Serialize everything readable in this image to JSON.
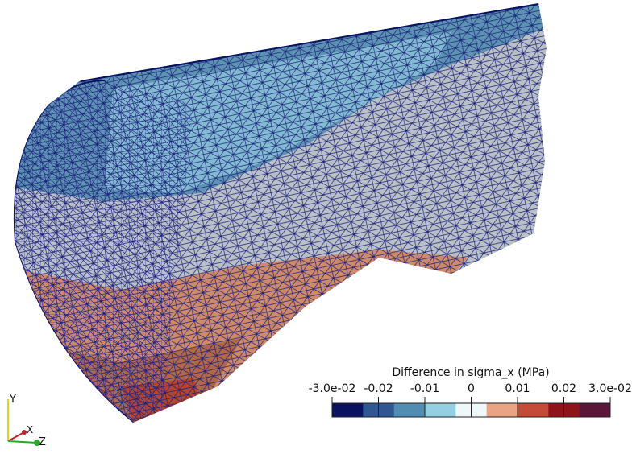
{
  "colorbar": {
    "title": "Difference in sigma_x (MPa)",
    "range": [
      -0.03,
      0.03
    ],
    "ticks": [
      {
        "value": -0.03,
        "label": "-3.0e-02"
      },
      -0.02,
      -0.01,
      0,
      0.01,
      0.02,
      {
        "value": 0.03,
        "label": "3.0e-02"
      }
    ],
    "colors": [
      "#0c1262",
      "#2f5794",
      "#4f8db2",
      "#93d1e2",
      "#eef7fa",
      "#eaa383",
      "#c44b36",
      "#8f141a",
      "#5b1638"
    ]
  },
  "axes": {
    "labels": [
      "Y",
      "X",
      "Z"
    ]
  }
}
